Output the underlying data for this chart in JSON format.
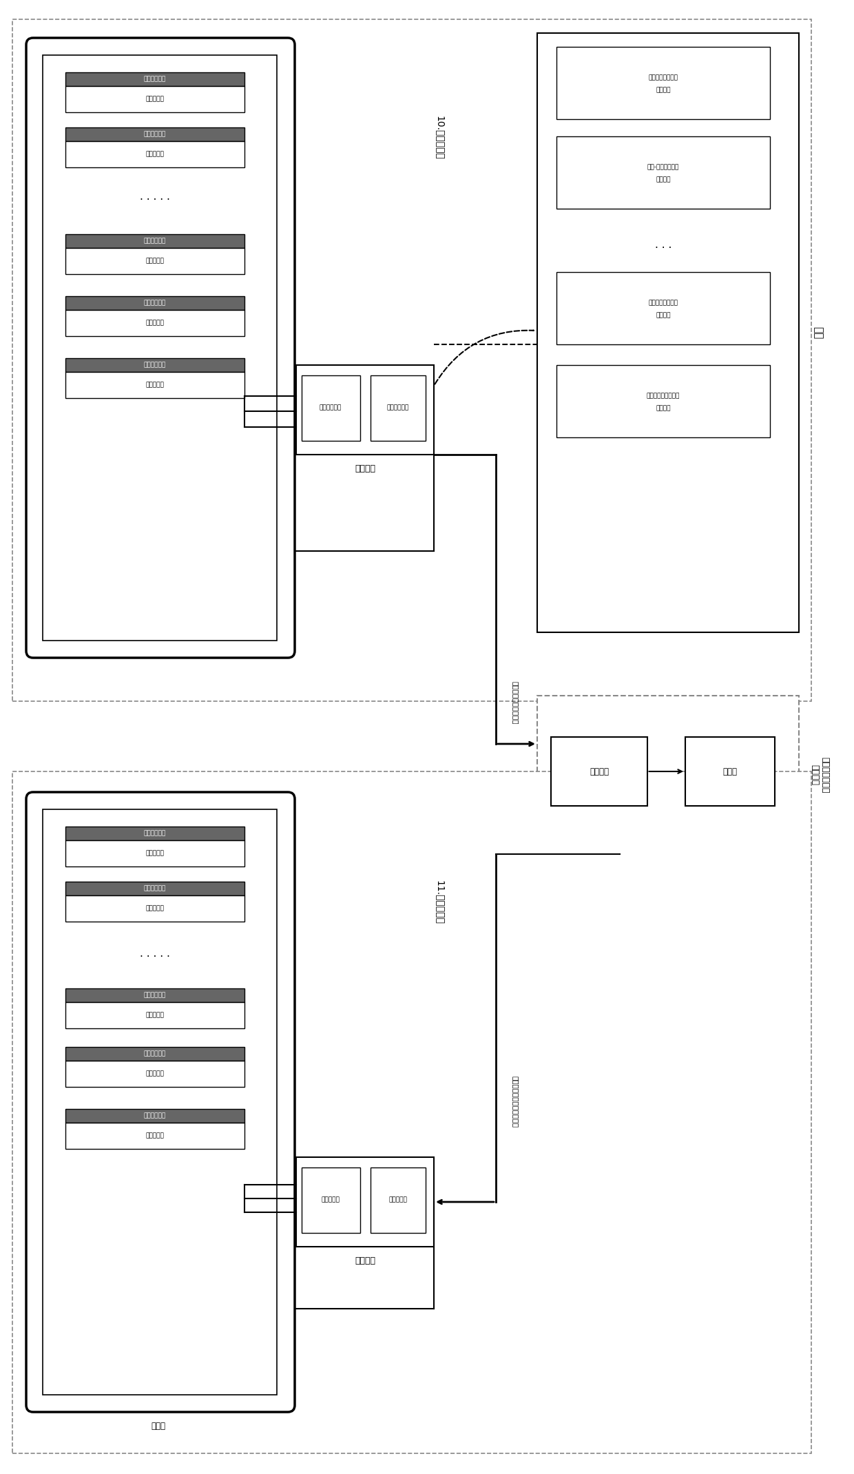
{
  "bg_color": "#ffffff",
  "top_station_label": "10.珠江新车站",
  "top_train_label": "列车",
  "bottom_station_label": "11.体育西路站",
  "bottom_gate_label": "闸机间",
  "center_label_line1": "广州地铁三号线",
  "center_label_line2": "总控制台",
  "vert_label_top": "珠江流量数据入站信息",
  "vert_label_bottom": "回调流量数据入站信息发送",
  "sub_ctrl_label": "子控制器",
  "wireless_chip": "无线模组芯片",
  "wireless_recv": "无线接收模块",
  "wireless_ctrl": "无线模控发",
  "wireless_ctrl2": "无线控制发",
  "ctrl_chip": "控制芯片",
  "recv_board": "收发板",
  "display_unit1": "透明显示方案",
  "display_unit2": "透明显示屏",
  "train_item1_line1": "柔性测温压力传感",
  "train_item1_line2": "模组总成",
  "train_item2_line1": "柔性-薄膜压力分布",
  "train_item2_line2": "感测总成",
  "train_item3_line1": "柔性测重压力分布",
  "train_item3_line2": "感测总成",
  "train_item4_line1": "柔性测量温压力传感",
  "train_item4_line2": "模组总成"
}
